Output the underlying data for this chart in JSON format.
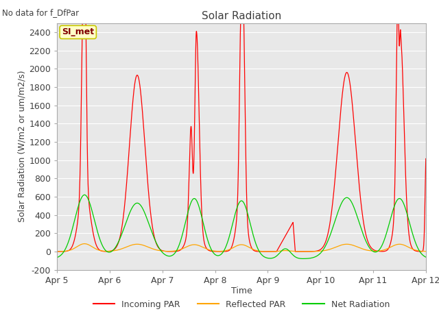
{
  "title": "Solar Radiation",
  "subtitle": "No data for f_DfPar",
  "ylabel": "Solar Radiation (W/m2 or um/m2/s)",
  "xlabel": "Time",
  "ylim": [
    -200,
    2500
  ],
  "yticks": [
    -200,
    0,
    200,
    400,
    600,
    800,
    1000,
    1200,
    1400,
    1600,
    1800,
    2000,
    2200,
    2400
  ],
  "xtick_labels": [
    "Apr 5",
    "Apr 6",
    "Apr 7",
    "Apr 8",
    "Apr 9",
    "Apr 10",
    "Apr 11",
    "Apr 12"
  ],
  "bg_color": "#ffffff",
  "plot_bg_color": "#e8e8e8",
  "grid_color": "#ffffff",
  "legend_entries": [
    "Incoming PAR",
    "Reflected PAR",
    "Net Radiation"
  ],
  "incoming_color": "#ff0000",
  "reflected_color": "#ffa500",
  "net_color": "#00cc00",
  "si_met_box_facecolor": "#ffffc8",
  "si_met_box_edgecolor": "#c8c800",
  "si_met_text_color": "#800000",
  "text_color": "#404040",
  "title_fontsize": 11,
  "label_fontsize": 9,
  "tick_fontsize": 9
}
